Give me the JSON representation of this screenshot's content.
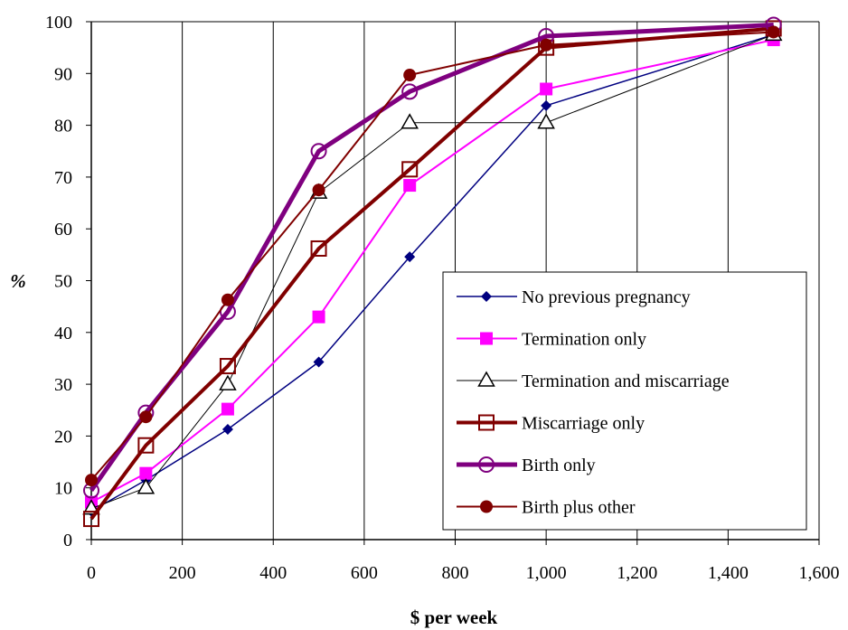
{
  "chart_data": {
    "type": "line",
    "title": "",
    "xlabel": "$ per week",
    "ylabel": "%",
    "xlim": [
      0,
      1600
    ],
    "ylim": [
      0,
      100
    ],
    "xticks": [
      0,
      200,
      400,
      600,
      800,
      1000,
      1200,
      1400,
      1600
    ],
    "xtick_labels": [
      "0",
      "200",
      "400",
      "600",
      "800",
      "1,000",
      "1,200",
      "1,400",
      "1,600"
    ],
    "yticks": [
      0,
      10,
      20,
      30,
      40,
      50,
      60,
      70,
      80,
      90,
      100
    ],
    "ytick_labels": [
      "0",
      "10",
      "20",
      "30",
      "40",
      "50",
      "60",
      "70",
      "80",
      "90",
      "100"
    ],
    "grid": "vertical",
    "legend_position": "bottom-right",
    "series": [
      {
        "name": "No previous pregnancy",
        "color": "#000080",
        "marker": "diamond",
        "x": [
          0,
          120,
          300,
          500,
          700,
          1000,
          1500
        ],
        "values": [
          5.5,
          11.5,
          21.3,
          34.3,
          54.6,
          83.8,
          97.5
        ]
      },
      {
        "name": "Termination only",
        "color": "#ff00ff",
        "marker": "square",
        "x": [
          0,
          120,
          300,
          500,
          700,
          1000,
          1500
        ],
        "values": [
          7.2,
          12.8,
          25.2,
          43.0,
          68.4,
          87.0,
          96.5
        ]
      },
      {
        "name": "Termination and miscarriage",
        "color": "#000000",
        "marker": "triangle-open",
        "x": [
          0,
          120,
          300,
          500,
          700,
          1000,
          1500
        ],
        "values": [
          6.0,
          10.0,
          30.0,
          67.0,
          80.5,
          80.5,
          97.5
        ]
      },
      {
        "name": "Miscarriage only",
        "color": "#800000",
        "marker": "square-open",
        "x": [
          0,
          120,
          300,
          500,
          700,
          1000,
          1500
        ],
        "values": [
          4.0,
          18.2,
          33.5,
          56.2,
          71.5,
          95.0,
          98.7
        ]
      },
      {
        "name": "Birth only",
        "color": "#7f007f",
        "marker": "circle-open",
        "x": [
          0,
          120,
          300,
          500,
          700,
          1000,
          1500
        ],
        "values": [
          9.5,
          24.5,
          44.0,
          75.0,
          86.5,
          97.2,
          99.4
        ]
      },
      {
        "name": "Birth plus other",
        "color": "#800000",
        "marker": "circle-filled",
        "x": [
          0,
          120,
          300,
          500,
          700,
          1000,
          1500
        ],
        "values": [
          11.5,
          23.7,
          46.3,
          67.5,
          89.7,
          95.5,
          98.0
        ]
      }
    ]
  }
}
